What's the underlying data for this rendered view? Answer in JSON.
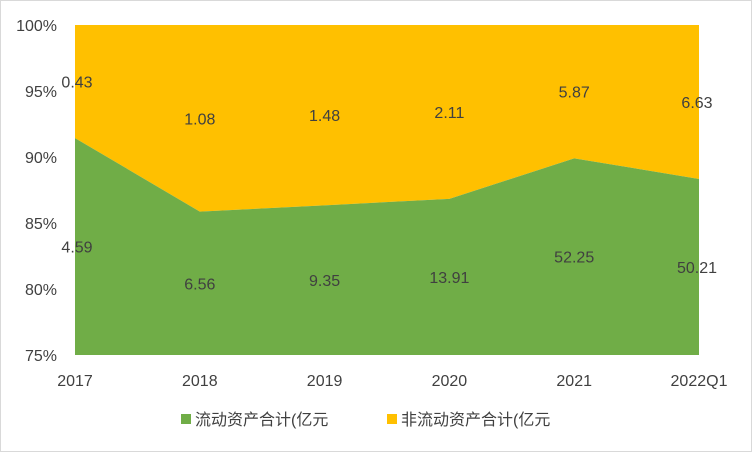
{
  "chart_data": {
    "type": "area",
    "stacking": "percent",
    "categories": [
      "2017",
      "2018",
      "2019",
      "2020",
      "2021",
      "2022Q1"
    ],
    "series": [
      {
        "name": "流动资产合计(亿元",
        "color": "#70AD47",
        "values": [
          4.59,
          6.56,
          9.35,
          13.91,
          52.25,
          50.21
        ]
      },
      {
        "name": "非流动资产合计(亿元",
        "color": "#FFC000",
        "values": [
          0.43,
          1.08,
          1.48,
          2.11,
          5.87,
          6.63
        ]
      }
    ],
    "ylim": [
      75,
      100
    ],
    "yticks": [
      "75%",
      "80%",
      "85%",
      "90%",
      "95%",
      "100%"
    ],
    "legend": "bottom",
    "grid": false
  }
}
